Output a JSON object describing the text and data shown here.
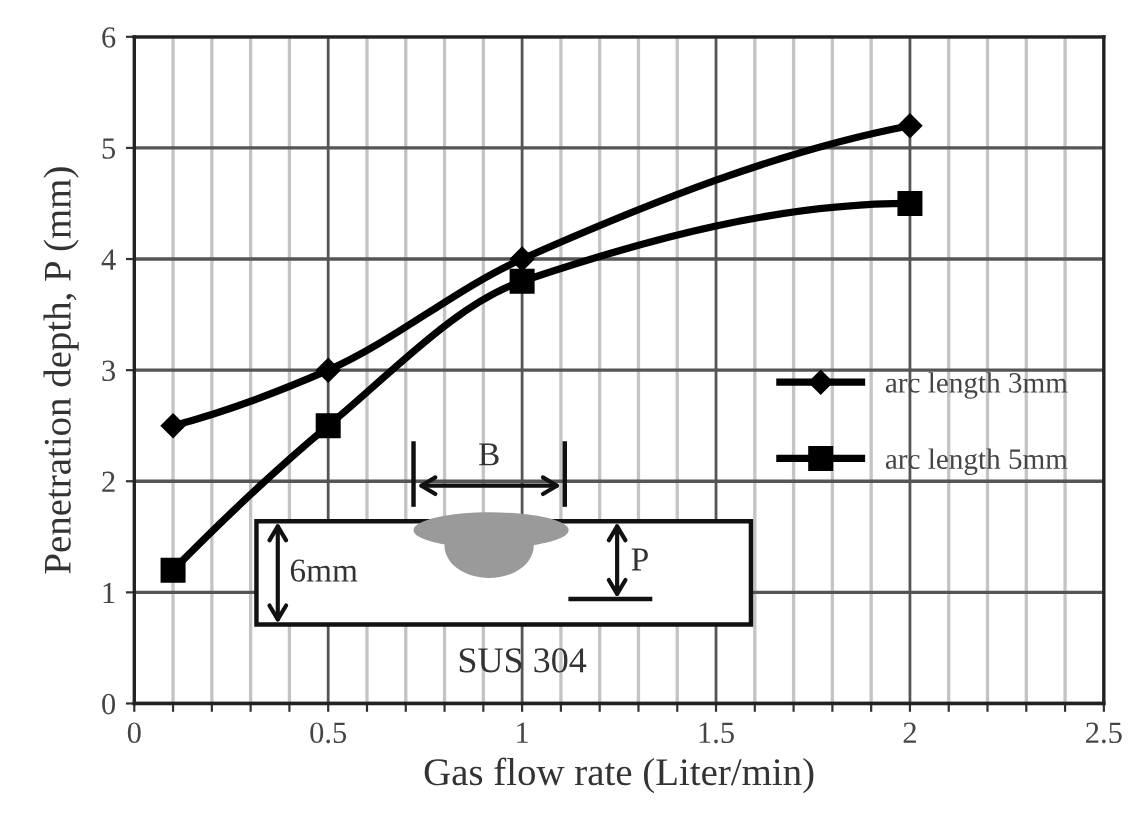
{
  "chart_data": {
    "type": "line",
    "xlabel": "Gas flow rate (Liter/min)",
    "ylabel": "Penetration depth, P (mm)",
    "x": [
      0.1,
      0.5,
      1,
      2
    ],
    "series": [
      {
        "name": "arc length 3mm",
        "color": "#000000",
        "marker": "diamond",
        "values": [
          2.5,
          3,
          4,
          5.2
        ]
      },
      {
        "name": "arc length 5mm",
        "color": "#000000",
        "marker": "square",
        "values": [
          1.2,
          2.5,
          3.8,
          4.5
        ]
      }
    ],
    "xlim": [
      0,
      2.5
    ],
    "ylim": [
      0,
      6
    ],
    "xticks": [
      0,
      {
        "value": 0.1,
        "label": null
      },
      {
        "value": 0.2,
        "label": null
      },
      {
        "value": 0.3,
        "label": null
      },
      {
        "value": 0.4,
        "label": null
      },
      0.5,
      {
        "value": 0.6,
        "label": null
      },
      {
        "value": 0.7,
        "label": null
      },
      {
        "value": 0.8,
        "label": null
      },
      {
        "value": 0.9,
        "label": null
      },
      1,
      {
        "value": 1.1,
        "label": null
      },
      {
        "value": 1.2,
        "label": null
      },
      {
        "value": 1.3,
        "label": null
      },
      {
        "value": 1.4,
        "label": null
      },
      1.5,
      {
        "value": 1.6,
        "label": null
      },
      {
        "value": 1.7,
        "label": null
      },
      {
        "value": 1.8,
        "label": null
      },
      {
        "value": 1.9,
        "label": null
      },
      2,
      {
        "value": 2.1,
        "label": null
      },
      {
        "value": 2.2,
        "label": null
      },
      {
        "value": 2.3,
        "label": null
      },
      {
        "value": 2.4,
        "label": null
      },
      2.5
    ],
    "yticks": [
      0,
      1,
      2,
      3,
      4,
      5,
      6
    ],
    "grid": true,
    "legend": "right",
    "line_style": "solid",
    "annotations": [
      "B",
      "6mm",
      "P",
      "SUS 304"
    ]
  }
}
